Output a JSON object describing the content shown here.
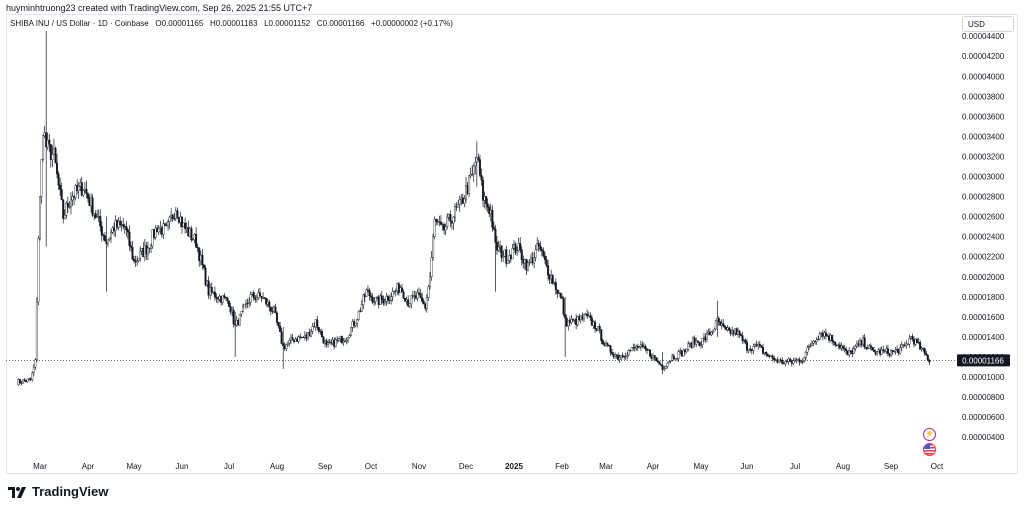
{
  "header": {
    "text": "huyminhtruong23 created with TradingView.com, Sep 26, 2025 21:55 UTC+7"
  },
  "legend": {
    "symbol": "SHIBA INU / US Dollar · 1D · Coinbase",
    "open_label": "O",
    "open": "0.00001165",
    "high_label": "H",
    "high": "0.00001183",
    "low_label": "L",
    "low": "0.00001152",
    "close_label": "C",
    "close": "0.00001166",
    "change": "+0.00000002 (+0.17%)"
  },
  "currency_button": {
    "label": "USD"
  },
  "last_price_label": "0.00001166",
  "footer": {
    "brand": "TradingView"
  },
  "colors": {
    "up": "#ffffff",
    "down": "#131722",
    "axis_text": "#131722",
    "grid": "#f0f3fa"
  },
  "chart_data": {
    "type": "candlestick",
    "title": "SHIBA INU / US Dollar · 1D · Coinbase",
    "y_ticks": [
      "0.00000400",
      "0.00000600",
      "0.00000800",
      "0.00001000",
      "0.00001200",
      "0.00001400",
      "0.00001600",
      "0.00001800",
      "0.00002000",
      "0.00002200",
      "0.00002400",
      "0.00002600",
      "0.00002800",
      "0.00003000",
      "0.00003200",
      "0.00003400",
      "0.00003600",
      "0.00003800",
      "0.00004000",
      "0.00004200",
      "0.00004400"
    ],
    "x_ticks": [
      "Mar",
      "Apr",
      "May",
      "Jun",
      "Jul",
      "Aug",
      "Sep",
      "Oct",
      "Nov",
      "Dec",
      "2025",
      "Feb",
      "Mar",
      "Apr",
      "May",
      "Jun",
      "Jul",
      "Aug",
      "Sep",
      "Oct"
    ],
    "x_ticks_bold": [
      "2025"
    ],
    "ylim": [
      3e-06,
      4.46e-05
    ],
    "last_price": 1.166e-05,
    "series": [
      {
        "name": "SHIB/USD",
        "approx_daily_close": [
          [
            "2024-02-15",
            9.5e-06
          ],
          [
            "2024-02-24",
            9.7e-06
          ],
          [
            "2024-02-27",
            1.15e-05
          ],
          [
            "2024-02-29",
            2.4e-05
          ],
          [
            "2024-03-03",
            3.5e-05
          ],
          [
            "2024-03-05",
            3.3e-05
          ],
          [
            "2024-03-10",
            3.2e-05
          ],
          [
            "2024-03-16",
            2.6e-05
          ],
          [
            "2024-03-21",
            2.8e-05
          ],
          [
            "2024-03-29",
            2.9e-05
          ],
          [
            "2024-04-05",
            2.65e-05
          ],
          [
            "2024-04-13",
            2.35e-05
          ],
          [
            "2024-04-18",
            2.5e-05
          ],
          [
            "2024-04-25",
            2.5e-05
          ],
          [
            "2024-05-01",
            2.15e-05
          ],
          [
            "2024-05-10",
            2.3e-05
          ],
          [
            "2024-05-16",
            2.5e-05
          ],
          [
            "2024-05-22",
            2.45e-05
          ],
          [
            "2024-05-28",
            2.7e-05
          ],
          [
            "2024-06-02",
            2.5e-05
          ],
          [
            "2024-06-10",
            2.35e-05
          ],
          [
            "2024-06-18",
            1.85e-05
          ],
          [
            "2024-06-25",
            1.8e-05
          ],
          [
            "2024-07-01",
            1.75e-05
          ],
          [
            "2024-07-05",
            1.5e-05
          ],
          [
            "2024-07-10",
            1.65e-05
          ],
          [
            "2024-07-15",
            1.8e-05
          ],
          [
            "2024-07-22",
            1.8e-05
          ],
          [
            "2024-07-30",
            1.65e-05
          ],
          [
            "2024-08-05",
            1.3e-05
          ],
          [
            "2024-08-12",
            1.38e-05
          ],
          [
            "2024-08-20",
            1.4e-05
          ],
          [
            "2024-08-26",
            1.55e-05
          ],
          [
            "2024-09-02",
            1.3e-05
          ],
          [
            "2024-09-08",
            1.35e-05
          ],
          [
            "2024-09-15",
            1.4e-05
          ],
          [
            "2024-09-22",
            1.6e-05
          ],
          [
            "2024-09-28",
            1.85e-05
          ],
          [
            "2024-10-05",
            1.75e-05
          ],
          [
            "2024-10-12",
            1.8e-05
          ],
          [
            "2024-10-20",
            1.9e-05
          ],
          [
            "2024-10-25",
            1.75e-05
          ],
          [
            "2024-10-31",
            1.8e-05
          ],
          [
            "2024-11-05",
            1.7e-05
          ],
          [
            "2024-11-08",
            2e-05
          ],
          [
            "2024-11-11",
            2.55e-05
          ],
          [
            "2024-11-16",
            2.45e-05
          ],
          [
            "2024-11-22",
            2.6e-05
          ],
          [
            "2024-11-27",
            2.7e-05
          ],
          [
            "2024-12-02",
            2.9e-05
          ],
          [
            "2024-12-05",
            3e-05
          ],
          [
            "2024-12-08",
            3.2e-05
          ],
          [
            "2024-12-12",
            2.8e-05
          ],
          [
            "2024-12-17",
            2.65e-05
          ],
          [
            "2024-12-20",
            2.3e-05
          ],
          [
            "2024-12-27",
            2.2e-05
          ],
          [
            "2025-01-03",
            2.3e-05
          ],
          [
            "2025-01-10",
            2.1e-05
          ],
          [
            "2025-01-17",
            2.3e-05
          ],
          [
            "2025-01-22",
            2.1e-05
          ],
          [
            "2025-01-28",
            1.9e-05
          ],
          [
            "2025-02-01",
            1.75e-05
          ],
          [
            "2025-02-03",
            1.55e-05
          ],
          [
            "2025-02-09",
            1.55e-05
          ],
          [
            "2025-02-16",
            1.6e-05
          ],
          [
            "2025-02-23",
            1.5e-05
          ],
          [
            "2025-03-01",
            1.3e-05
          ],
          [
            "2025-03-09",
            1.2e-05
          ],
          [
            "2025-03-15",
            1.25e-05
          ],
          [
            "2025-03-22",
            1.3e-05
          ],
          [
            "2025-03-29",
            1.25e-05
          ],
          [
            "2025-04-07",
            1.1e-05
          ],
          [
            "2025-04-13",
            1.2e-05
          ],
          [
            "2025-04-20",
            1.25e-05
          ],
          [
            "2025-04-26",
            1.35e-05
          ],
          [
            "2025-05-01",
            1.35e-05
          ],
          [
            "2025-05-08",
            1.45e-05
          ],
          [
            "2025-05-12",
            1.55e-05
          ],
          [
            "2025-05-18",
            1.45e-05
          ],
          [
            "2025-05-25",
            1.45e-05
          ],
          [
            "2025-06-01",
            1.3e-05
          ],
          [
            "2025-06-08",
            1.3e-05
          ],
          [
            "2025-06-15",
            1.2e-05
          ],
          [
            "2025-06-22",
            1.15e-05
          ],
          [
            "2025-06-29",
            1.15e-05
          ],
          [
            "2025-07-06",
            1.18e-05
          ],
          [
            "2025-07-12",
            1.35e-05
          ],
          [
            "2025-07-18",
            1.45e-05
          ],
          [
            "2025-07-23",
            1.4e-05
          ],
          [
            "2025-07-31",
            1.3e-05
          ],
          [
            "2025-08-04",
            1.22e-05
          ],
          [
            "2025-08-10",
            1.3e-05
          ],
          [
            "2025-08-14",
            1.35e-05
          ],
          [
            "2025-08-20",
            1.25e-05
          ],
          [
            "2025-08-27",
            1.25e-05
          ],
          [
            "2025-09-03",
            1.25e-05
          ],
          [
            "2025-09-10",
            1.3e-05
          ],
          [
            "2025-09-14",
            1.4e-05
          ],
          [
            "2025-09-18",
            1.33e-05
          ],
          [
            "2025-09-22",
            1.25e-05
          ],
          [
            "2025-09-26",
            1.166e-05
          ]
        ],
        "spikes": [
          {
            "date": "2024-03-05",
            "high": 4.45e-05,
            "low": 2.3e-05
          },
          {
            "date": "2024-04-13",
            "high": 2.6e-05,
            "low": 1.85e-05
          },
          {
            "date": "2024-07-05",
            "high": 1.65e-05,
            "low": 1.2e-05
          },
          {
            "date": "2024-08-05",
            "high": 1.5e-05,
            "low": 1.08e-05
          },
          {
            "date": "2024-12-08",
            "high": 3.35e-05,
            "low": 2.9e-05
          },
          {
            "date": "2024-12-20",
            "high": 2.45e-05,
            "low": 1.85e-05
          },
          {
            "date": "2025-02-03",
            "high": 1.8e-05,
            "low": 1.2e-05
          },
          {
            "date": "2025-04-07",
            "high": 1.25e-05,
            "low": 1.03e-05
          },
          {
            "date": "2025-05-12",
            "high": 1.76e-05,
            "low": 1.4e-05
          }
        ]
      }
    ]
  }
}
